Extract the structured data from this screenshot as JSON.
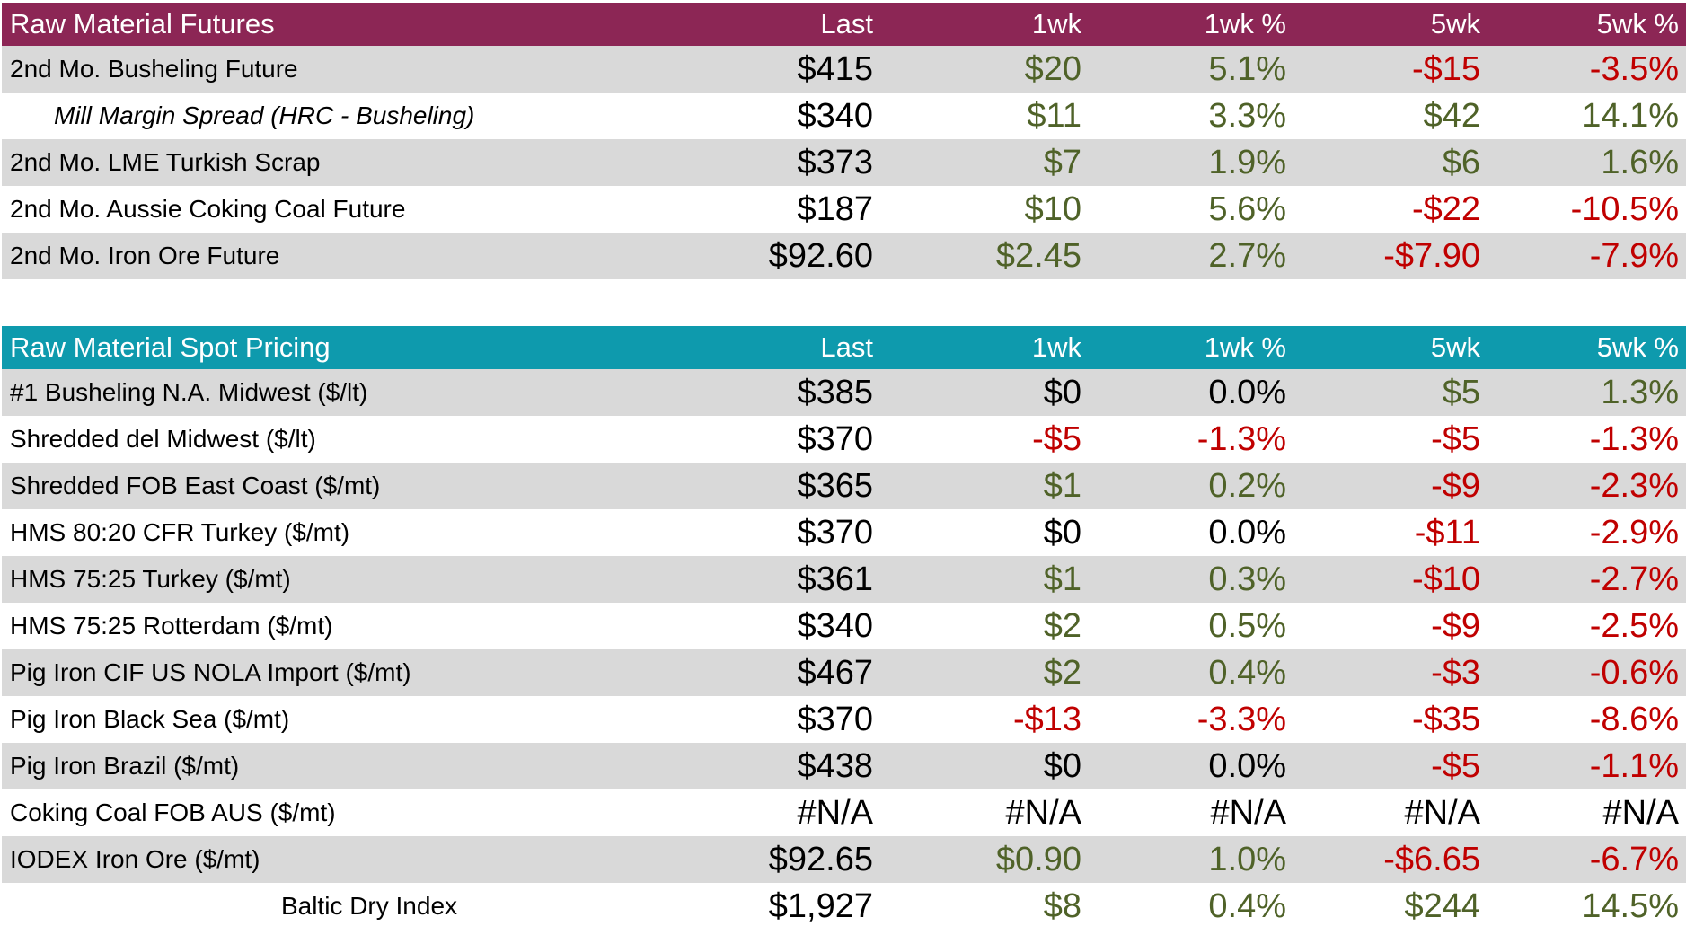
{
  "colors": {
    "positive": "#4F6228",
    "negative": "#C00000",
    "neutral": "#000000",
    "stripe": "#D9D9D9",
    "header_text": "#FFFFFF",
    "futures_header_bg": "#8C2655",
    "spot_header_bg": "#0E9AAD"
  },
  "chart_data": [
    {
      "type": "table",
      "title": "Raw Material Futures",
      "header_bg": "#8C2655",
      "columns": [
        "Last",
        "1wk",
        "1wk %",
        "5wk",
        "5wk %"
      ],
      "rows": [
        {
          "label": "2nd Mo. Busheling Future",
          "values": [
            "$415",
            "$20",
            "5.1%",
            "-$15",
            "-3.5%"
          ],
          "value_colors": [
            "neutral",
            "positive",
            "positive",
            "negative",
            "negative"
          ]
        },
        {
          "label": "Mill Margin Spread (HRC - Busheling)",
          "style": "indent-italic",
          "values": [
            "$340",
            "$11",
            "3.3%",
            "$42",
            "14.1%"
          ],
          "value_colors": [
            "neutral",
            "positive",
            "positive",
            "positive",
            "positive"
          ]
        },
        {
          "label": "2nd Mo. LME Turkish Scrap",
          "values": [
            "$373",
            "$7",
            "1.9%",
            "$6",
            "1.6%"
          ],
          "value_colors": [
            "neutral",
            "positive",
            "positive",
            "positive",
            "positive"
          ]
        },
        {
          "label": "2nd Mo. Aussie Coking Coal Future",
          "values": [
            "$187",
            "$10",
            "5.6%",
            "-$22",
            "-10.5%"
          ],
          "value_colors": [
            "neutral",
            "positive",
            "positive",
            "negative",
            "negative"
          ]
        },
        {
          "label": "2nd Mo. Iron Ore Future",
          "values": [
            "$92.60",
            "$2.45",
            "2.7%",
            "-$7.90",
            "-7.9%"
          ],
          "value_colors": [
            "neutral",
            "positive",
            "positive",
            "negative",
            "negative"
          ]
        }
      ]
    },
    {
      "type": "table",
      "title": "Raw Material Spot Pricing",
      "header_bg": "#0E9AAD",
      "columns": [
        "Last",
        "1wk",
        "1wk %",
        "5wk",
        "5wk %"
      ],
      "rows": [
        {
          "label": "#1 Busheling N.A. Midwest ($/lt)",
          "values": [
            "$385",
            "$0",
            "0.0%",
            "$5",
            "1.3%"
          ],
          "value_colors": [
            "neutral",
            "neutral",
            "neutral",
            "positive",
            "positive"
          ]
        },
        {
          "label": "Shredded del  Midwest ($/lt)",
          "values": [
            "$370",
            "-$5",
            "-1.3%",
            "-$5",
            "-1.3%"
          ],
          "value_colors": [
            "neutral",
            "negative",
            "negative",
            "negative",
            "negative"
          ]
        },
        {
          "label": "Shredded FOB East Coast ($/mt)",
          "values": [
            "$365",
            "$1",
            "0.2%",
            "-$9",
            "-2.3%"
          ],
          "value_colors": [
            "neutral",
            "positive",
            "positive",
            "negative",
            "negative"
          ]
        },
        {
          "label": "HMS 80:20 CFR Turkey ($/mt)",
          "values": [
            "$370",
            "$0",
            "0.0%",
            "-$11",
            "-2.9%"
          ],
          "value_colors": [
            "neutral",
            "neutral",
            "neutral",
            "negative",
            "negative"
          ]
        },
        {
          "label": "HMS 75:25 Turkey ($/mt)",
          "values": [
            "$361",
            "$1",
            "0.3%",
            "-$10",
            "-2.7%"
          ],
          "value_colors": [
            "neutral",
            "positive",
            "positive",
            "negative",
            "negative"
          ]
        },
        {
          "label": "HMS 75:25 Rotterdam ($/mt)",
          "values": [
            "$340",
            "$2",
            "0.5%",
            "-$9",
            "-2.5%"
          ],
          "value_colors": [
            "neutral",
            "positive",
            "positive",
            "negative",
            "negative"
          ]
        },
        {
          "label": "Pig Iron CIF US NOLA Import ($/mt)",
          "values": [
            "$467",
            "$2",
            "0.4%",
            "-$3",
            "-0.6%"
          ],
          "value_colors": [
            "neutral",
            "positive",
            "positive",
            "negative",
            "negative"
          ]
        },
        {
          "label": "Pig Iron Black Sea ($/mt)",
          "values": [
            "$370",
            "-$13",
            "-3.3%",
            "-$35",
            "-8.6%"
          ],
          "value_colors": [
            "neutral",
            "negative",
            "negative",
            "negative",
            "negative"
          ]
        },
        {
          "label": "Pig Iron Brazil ($/mt)",
          "values": [
            "$438",
            "$0",
            "0.0%",
            "-$5",
            "-1.1%"
          ],
          "value_colors": [
            "neutral",
            "neutral",
            "neutral",
            "negative",
            "negative"
          ]
        },
        {
          "label": "Coking Coal FOB AUS ($/mt)",
          "values": [
            "#N/A",
            "#N/A",
            "#N/A",
            "#N/A",
            "#N/A"
          ],
          "value_colors": [
            "neutral",
            "neutral",
            "neutral",
            "neutral",
            "neutral"
          ]
        },
        {
          "label": "IODEX  Iron Ore ($/mt)",
          "values": [
            "$92.65",
            "$0.90",
            "1.0%",
            "-$6.65",
            "-6.7%"
          ],
          "value_colors": [
            "neutral",
            "positive",
            "positive",
            "negative",
            "negative"
          ]
        },
        {
          "label": "Baltic Dry Index",
          "style": "center",
          "values": [
            "$1,927",
            "$8",
            "0.4%",
            "$244",
            "14.5%"
          ],
          "value_colors": [
            "neutral",
            "positive",
            "positive",
            "positive",
            "positive"
          ]
        }
      ]
    }
  ]
}
